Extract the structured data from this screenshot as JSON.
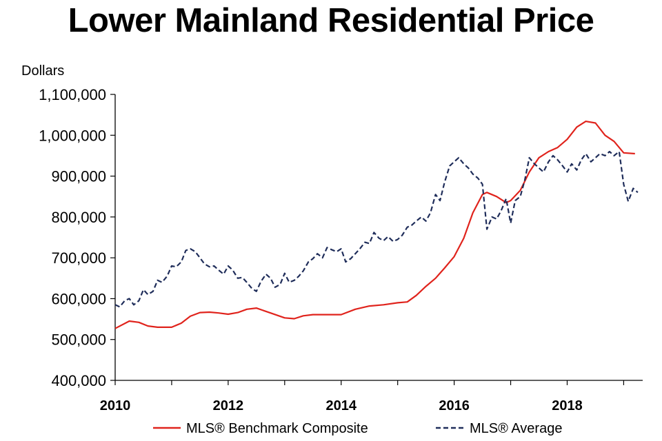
{
  "chart_data": {
    "type": "line",
    "title": "Lower Mainland Residential Price",
    "ylabel": "Dollars",
    "xlabel": "",
    "xlim": [
      2010,
      2019.3
    ],
    "ylim": [
      400000,
      1100000
    ],
    "x_ticks": [
      2010,
      2012,
      2014,
      2016,
      2018
    ],
    "x_tick_labels": [
      "2010",
      "2012",
      "2014",
      "2016",
      "2018"
    ],
    "y_ticks": [
      400000,
      500000,
      600000,
      700000,
      800000,
      900000,
      1000000,
      1100000
    ],
    "y_tick_labels": [
      "400,000",
      "500,000",
      "600,000",
      "700,000",
      "800,000",
      "900,000",
      "1,000,000",
      "1,100,000"
    ],
    "grid": false,
    "legend_position": "bottom",
    "series": [
      {
        "name": "MLS® Benchmark Composite",
        "color": "#e0231c",
        "style": "solid",
        "x": [
          2010.0,
          2010.25,
          2010.42,
          2010.58,
          2010.75,
          2011.0,
          2011.17,
          2011.33,
          2011.5,
          2011.67,
          2011.83,
          2012.0,
          2012.17,
          2012.33,
          2012.5,
          2012.75,
          2013.0,
          2013.17,
          2013.33,
          2013.5,
          2013.75,
          2014.0,
          2014.25,
          2014.5,
          2014.75,
          2015.0,
          2015.17,
          2015.33,
          2015.5,
          2015.67,
          2015.83,
          2016.0,
          2016.17,
          2016.33,
          2016.5,
          2016.58,
          2016.75,
          2016.92,
          2017.0,
          2017.17,
          2017.33,
          2017.5,
          2017.67,
          2017.83,
          2018.0,
          2018.17,
          2018.33,
          2018.5,
          2018.67,
          2018.83,
          2019.0,
          2019.2
        ],
        "y": [
          527000,
          545000,
          542000,
          533000,
          530000,
          530000,
          540000,
          557000,
          566000,
          567000,
          565000,
          562000,
          566000,
          574000,
          577000,
          565000,
          553000,
          551000,
          558000,
          561000,
          561000,
          561000,
          574000,
          582000,
          585000,
          590000,
          592000,
          608000,
          630000,
          650000,
          675000,
          703000,
          748000,
          810000,
          855000,
          860000,
          850000,
          835000,
          840000,
          865000,
          910000,
          945000,
          960000,
          970000,
          990000,
          1020000,
          1034000,
          1030000,
          1000000,
          985000,
          957000,
          955000
        ]
      },
      {
        "name": "MLS® Average",
        "color": "#1f2d5a",
        "style": "dashed",
        "x": [
          2010.0,
          2010.08,
          2010.17,
          2010.25,
          2010.33,
          2010.42,
          2010.5,
          2010.58,
          2010.67,
          2010.75,
          2010.83,
          2010.92,
          2011.0,
          2011.08,
          2011.17,
          2011.25,
          2011.33,
          2011.42,
          2011.5,
          2011.58,
          2011.67,
          2011.75,
          2011.83,
          2011.92,
          2012.0,
          2012.08,
          2012.17,
          2012.25,
          2012.33,
          2012.42,
          2012.5,
          2012.58,
          2012.67,
          2012.75,
          2012.83,
          2012.92,
          2013.0,
          2013.08,
          2013.17,
          2013.25,
          2013.33,
          2013.42,
          2013.5,
          2013.58,
          2013.67,
          2013.75,
          2013.83,
          2013.92,
          2014.0,
          2014.08,
          2014.17,
          2014.25,
          2014.33,
          2014.42,
          2014.5,
          2014.58,
          2014.67,
          2014.75,
          2014.83,
          2014.92,
          2015.0,
          2015.08,
          2015.17,
          2015.25,
          2015.33,
          2015.42,
          2015.5,
          2015.58,
          2015.67,
          2015.75,
          2015.83,
          2015.92,
          2016.0,
          2016.08,
          2016.17,
          2016.25,
          2016.33,
          2016.42,
          2016.5,
          2016.58,
          2016.67,
          2016.75,
          2016.83,
          2016.92,
          2017.0,
          2017.08,
          2017.17,
          2017.25,
          2017.33,
          2017.42,
          2017.5,
          2017.58,
          2017.67,
          2017.75,
          2017.83,
          2017.92,
          2018.0,
          2018.08,
          2018.17,
          2018.25,
          2018.33,
          2018.42,
          2018.5,
          2018.58,
          2018.67,
          2018.75,
          2018.83,
          2018.92,
          2019.0,
          2019.08,
          2019.17,
          2019.25
        ],
        "y": [
          585000,
          580000,
          595000,
          600000,
          585000,
          595000,
          622000,
          610000,
          618000,
          645000,
          640000,
          655000,
          680000,
          678000,
          690000,
          718000,
          722000,
          715000,
          700000,
          685000,
          678000,
          680000,
          670000,
          660000,
          680000,
          670000,
          650000,
          652000,
          640000,
          625000,
          618000,
          642000,
          660000,
          650000,
          628000,
          635000,
          662000,
          640000,
          645000,
          655000,
          668000,
          690000,
          698000,
          710000,
          700000,
          725000,
          720000,
          715000,
          722000,
          690000,
          698000,
          710000,
          722000,
          738000,
          735000,
          762000,
          748000,
          742000,
          752000,
          740000,
          745000,
          755000,
          775000,
          780000,
          790000,
          800000,
          790000,
          810000,
          855000,
          840000,
          885000,
          925000,
          935000,
          945000,
          930000,
          920000,
          905000,
          895000,
          880000,
          770000,
          800000,
          795000,
          815000,
          845000,
          785000,
          840000,
          850000,
          890000,
          945000,
          930000,
          920000,
          910000,
          935000,
          950000,
          940000,
          925000,
          910000,
          930000,
          915000,
          940000,
          955000,
          935000,
          945000,
          955000,
          950000,
          960000,
          950000,
          960000,
          880000,
          838000,
          870000,
          860000
        ]
      }
    ]
  }
}
